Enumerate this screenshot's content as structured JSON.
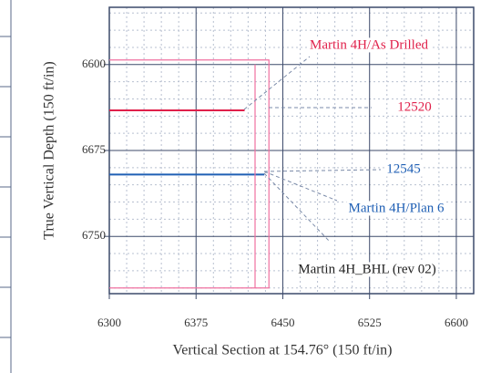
{
  "chart_data": {
    "type": "line",
    "xlabel": "Vertical Section at 154.76° (150 ft/in)",
    "ylabel": "True Vertical Depth (150 ft/in)",
    "xlim": [
      6300,
      6615
    ],
    "ylim": [
      6800,
      6550
    ],
    "y_inverted": true,
    "xticks": [
      6300,
      6375,
      6450,
      6525,
      6600
    ],
    "yticks": [
      6600,
      6675,
      6750
    ],
    "xminorticks": [
      6315,
      6330,
      6345,
      6360,
      6390,
      6405,
      6420,
      6435,
      6465,
      6480,
      6495,
      6510,
      6540,
      6555,
      6570,
      6585
    ],
    "yminorticks": [
      6555,
      6570,
      6585,
      6615,
      6630,
      6645,
      6660,
      6690,
      6705,
      6720,
      6735,
      6765,
      6780,
      6795
    ],
    "grid": true,
    "series": [
      {
        "color": "#e0204a",
        "x": [
          6300,
          6417
        ],
        "y": [
          6640,
          6640
        ]
      },
      {
        "color": "#1f5fb4",
        "x": [
          6300,
          6434
        ],
        "y": [
          6696,
          6696
        ]
      },
      {
        "color": "#f070a0",
        "x": [
          6300,
          6438,
          6438,
          6300
        ],
        "y": [
          6596,
          6596,
          6795,
          6795
        ]
      },
      {
        "color": "#f070a0",
        "x": [
          6426,
          6426
        ],
        "y": [
          6600,
          6795
        ]
      }
    ],
    "annotations": [
      {
        "text": "Martin 4H/As Drilled",
        "color": "#e0204a"
      },
      {
        "text": "12520",
        "color": "#e0204a"
      },
      {
        "text": "12545",
        "color": "#1f5fb4"
      },
      {
        "text": "Martin 4H/Plan 6",
        "color": "#1f5fb4"
      },
      {
        "text": "Martin 4H_BHL (rev 02)",
        "color": "#222222"
      }
    ]
  }
}
